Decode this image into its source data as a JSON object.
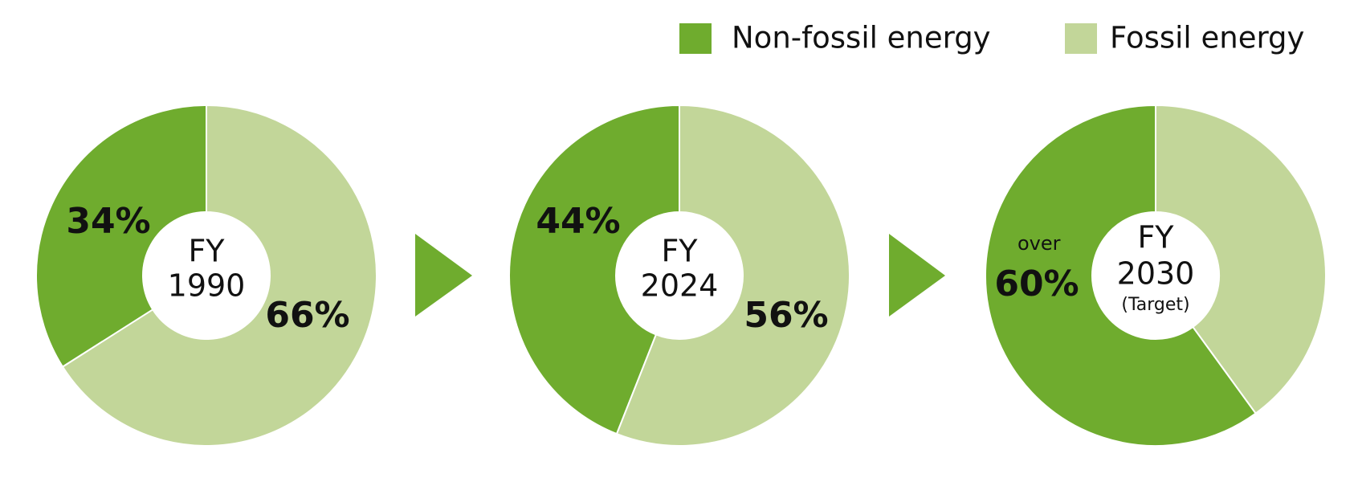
{
  "chart_data": [
    {
      "type": "pie",
      "title": "FY",
      "subtitle": "1990",
      "categories": [
        "Non-fossil energy",
        "Fossil energy"
      ],
      "colors": [
        "#6fac2e",
        "#c2d699"
      ],
      "values": [
        34,
        66
      ],
      "value_labels": [
        "34%",
        "66%"
      ]
    },
    {
      "type": "pie",
      "title": "FY",
      "subtitle": "2024",
      "categories": [
        "Non-fossil energy",
        "Fossil energy"
      ],
      "colors": [
        "#6fac2e",
        "#c2d699"
      ],
      "values": [
        44,
        56
      ],
      "value_labels": [
        "44%",
        "56%"
      ]
    },
    {
      "type": "pie",
      "title": "FY",
      "subtitle": "2030",
      "note": "(Target)",
      "categories": [
        "Non-fossil energy",
        "Fossil energy"
      ],
      "colors": [
        "#6fac2e",
        "#c2d699"
      ],
      "values": [
        60,
        40
      ],
      "value_labels": [
        "60%",
        null
      ],
      "label_prefix": "over"
    }
  ]
}
